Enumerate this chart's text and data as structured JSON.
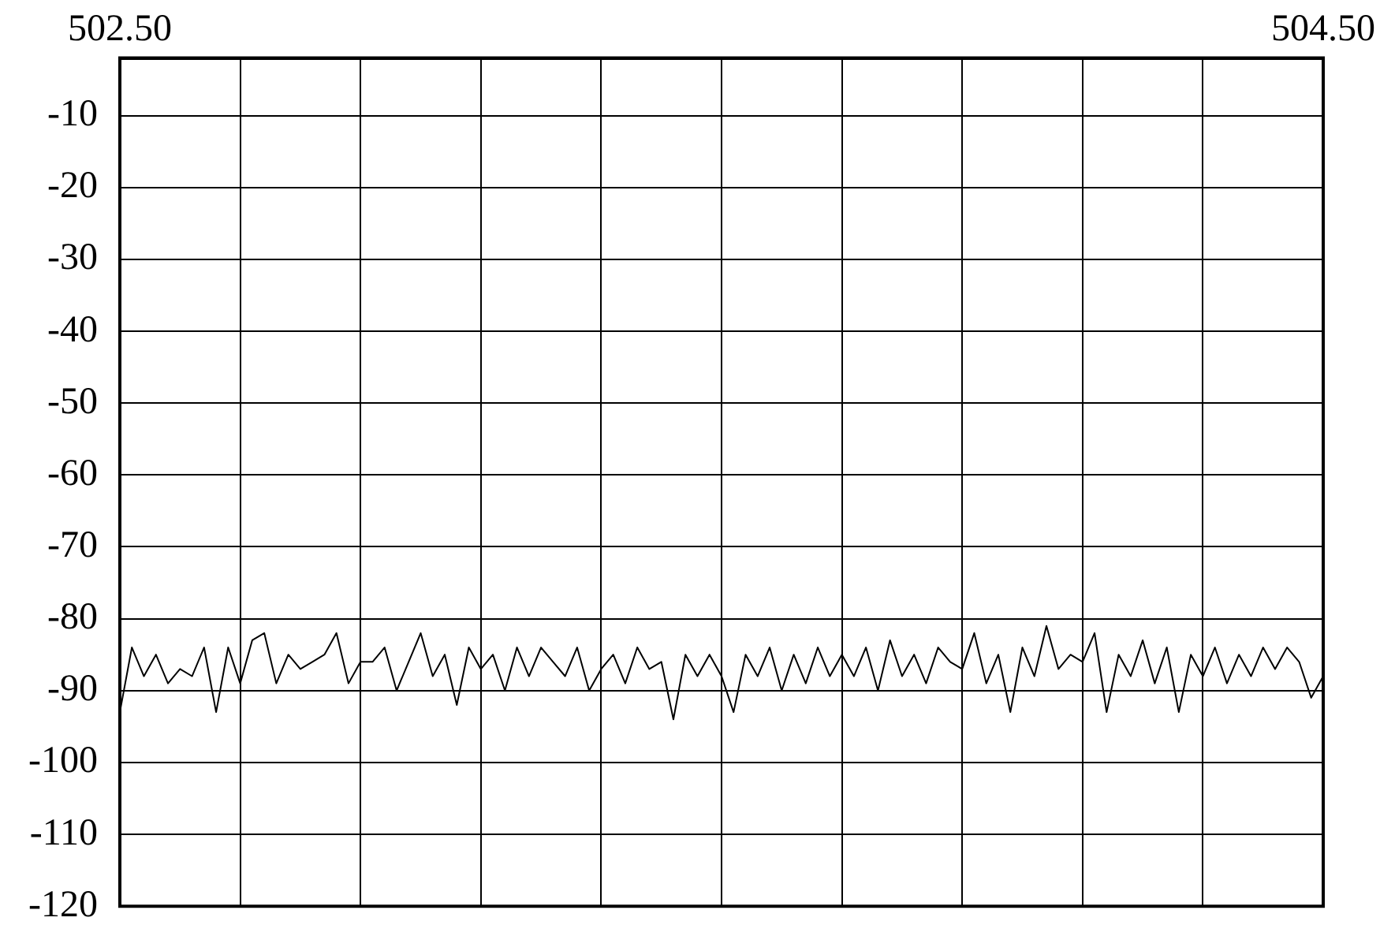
{
  "chart_data": {
    "type": "line",
    "xlim": [
      502.5,
      504.5
    ],
    "xticks": [
      {
        "value": 502.5,
        "label": "502.50"
      },
      {
        "value": 502.7,
        "label": null
      },
      {
        "value": 502.9,
        "label": null
      },
      {
        "value": 503.1,
        "label": null
      },
      {
        "value": 503.3,
        "label": null
      },
      {
        "value": 503.5,
        "label": null
      },
      {
        "value": 503.7,
        "label": null
      },
      {
        "value": 503.9,
        "label": null
      },
      {
        "value": 504.1,
        "label": null
      },
      {
        "value": 504.3,
        "label": null
      },
      {
        "value": 504.5,
        "label": "504.50"
      }
    ],
    "ylim": [
      -120,
      -2
    ],
    "yticks": [
      -10,
      -20,
      -30,
      -40,
      -50,
      -60,
      -70,
      -80,
      -90,
      -100,
      -110,
      -120
    ],
    "grid": true,
    "legend": false,
    "marker": "none",
    "line_style": "solid",
    "x": [
      502.5,
      502.52,
      502.54,
      502.56,
      502.58,
      502.6,
      502.62,
      502.64,
      502.66,
      502.68,
      502.7,
      502.72,
      502.74,
      502.76,
      502.78,
      502.8,
      502.82,
      502.84,
      502.86,
      502.88,
      502.9,
      502.92,
      502.94,
      502.96,
      502.98,
      503,
      503.02,
      503.04,
      503.06,
      503.08,
      503.1,
      503.12,
      503.14,
      503.16,
      503.18,
      503.2,
      503.22,
      503.24,
      503.26,
      503.28,
      503.3,
      503.32,
      503.34,
      503.36,
      503.38,
      503.4,
      503.42,
      503.44,
      503.46,
      503.48,
      503.5,
      503.52,
      503.54,
      503.56,
      503.58,
      503.6,
      503.62,
      503.64,
      503.66,
      503.68,
      503.7,
      503.72,
      503.74,
      503.76,
      503.78,
      503.8,
      503.82,
      503.84,
      503.86,
      503.88,
      503.9,
      503.92,
      503.94,
      503.96,
      503.98,
      504,
      504.02,
      504.04,
      504.06,
      504.08,
      504.1,
      504.12,
      504.14,
      504.16,
      504.18,
      504.2,
      504.22,
      504.24,
      504.26,
      504.28,
      504.3,
      504.32,
      504.34,
      504.36,
      504.38,
      504.4,
      504.42,
      504.44,
      504.46,
      504.48,
      504.5
    ],
    "series": [
      {
        "color": "#000000",
        "values": [
          -93,
          -84,
          -88,
          -85,
          -89,
          -87,
          -88,
          -84,
          -93,
          -84,
          -89,
          -83,
          -82,
          -89,
          -85,
          -87,
          -86,
          -85,
          -82,
          -89,
          -86,
          -86,
          -84,
          -90,
          -86,
          -82,
          -88,
          -85,
          -92,
          -84,
          -87,
          -85,
          -90,
          -84,
          -88,
          -84,
          -86,
          -88,
          -84,
          -90,
          -87,
          -85,
          -89,
          -84,
          -87,
          -86,
          -94,
          -85,
          -88,
          -85,
          -88,
          -93,
          -85,
          -88,
          -84,
          -90,
          -85,
          -89,
          -84,
          -88,
          -85,
          -88,
          -84,
          -90,
          -83,
          -88,
          -85,
          -89,
          -84,
          -86,
          -87,
          -82,
          -89,
          -85,
          -93,
          -84,
          -88,
          -81,
          -87,
          -85,
          -86,
          -82,
          -93,
          -85,
          -88,
          -83,
          -89,
          -84,
          -93,
          -85,
          -88,
          -84,
          -89,
          -85,
          -88,
          -84,
          -87,
          -84,
          -86,
          -91,
          -88
        ]
      }
    ]
  }
}
